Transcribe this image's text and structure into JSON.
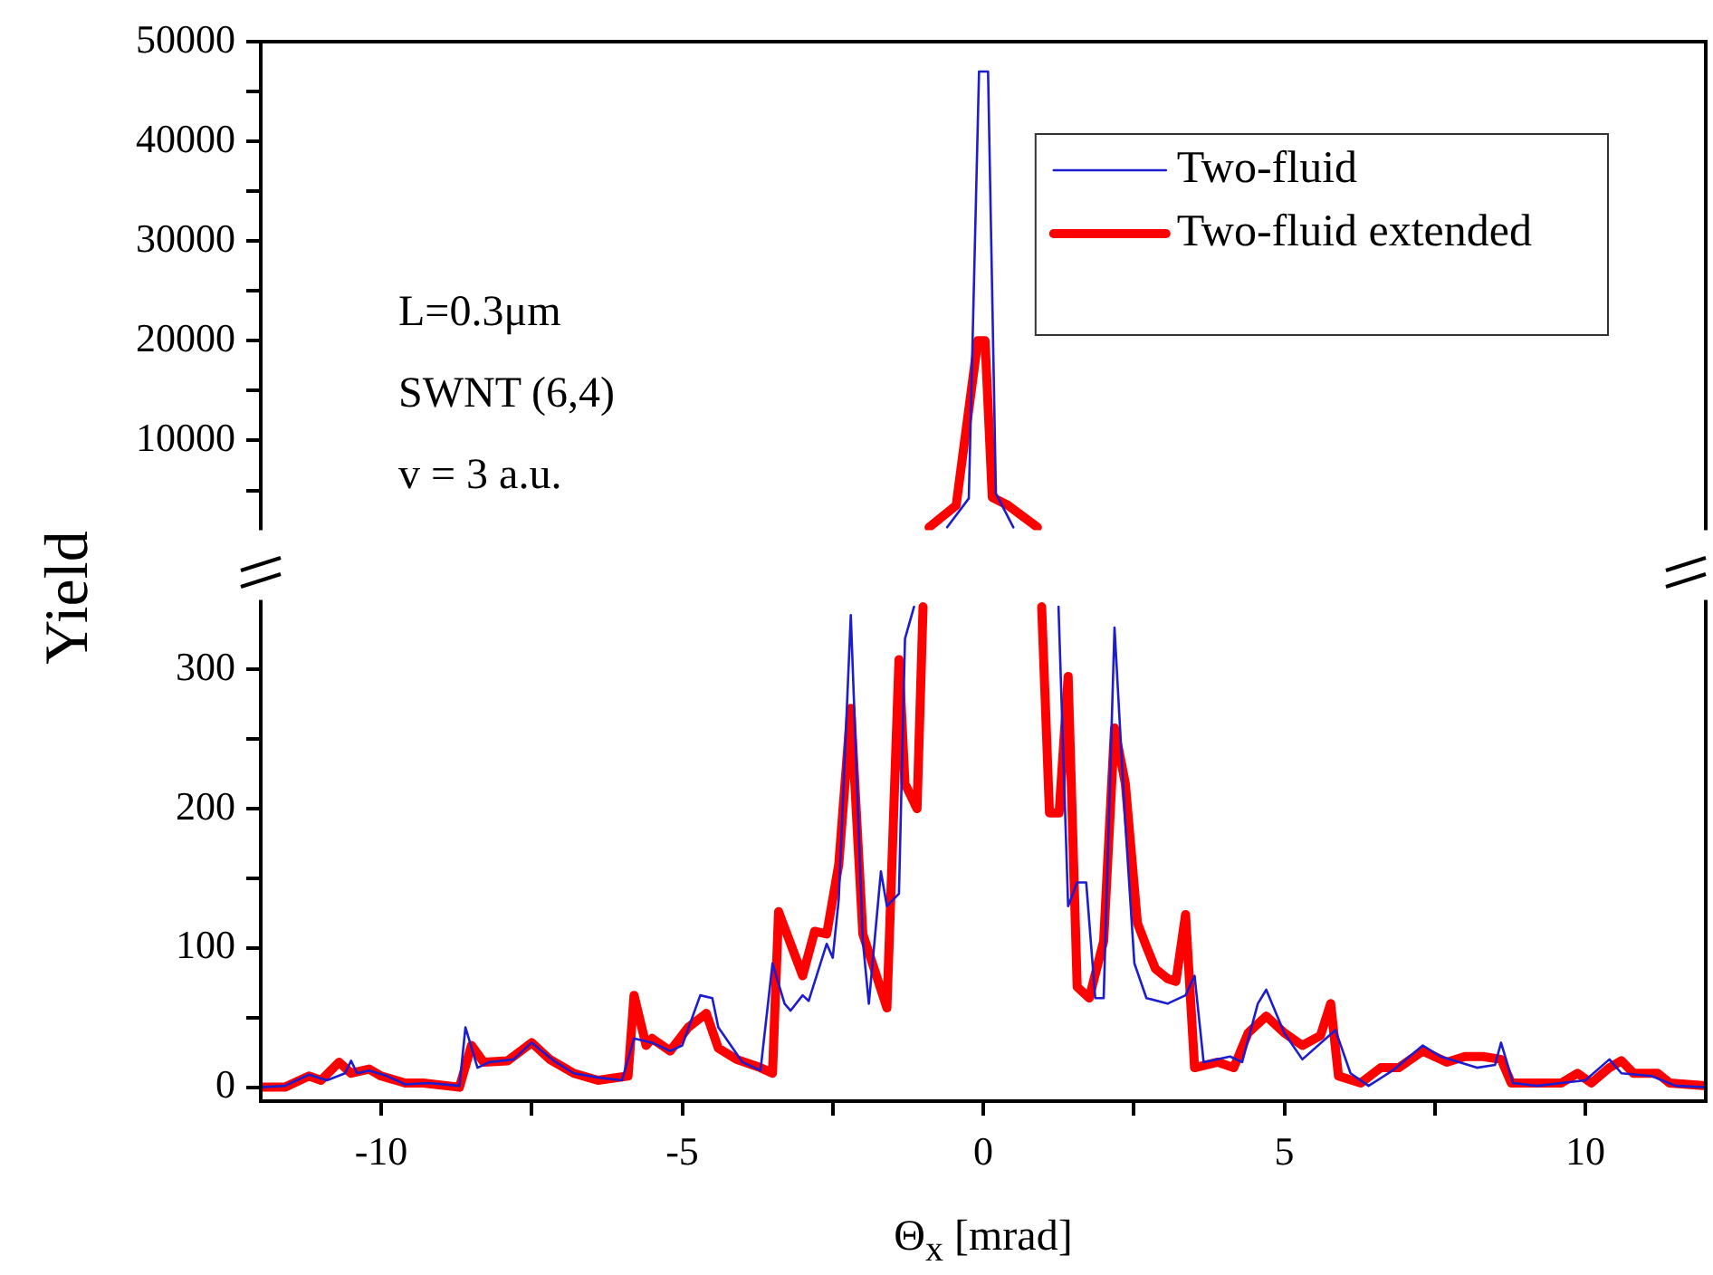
{
  "chart_data": [
    {
      "type": "line",
      "xlim": [
        -12,
        12
      ],
      "ylim": [
        1000,
        50000
      ],
      "yticks": [
        {
          "value": 5000,
          "label": null
        },
        10000,
        {
          "value": 15000,
          "label": null
        },
        20000,
        {
          "value": 25000,
          "label": null
        },
        30000,
        {
          "value": 35000,
          "label": null
        },
        40000,
        {
          "value": 45000,
          "label": null
        },
        50000
      ],
      "tick_labels": "y",
      "legend": "top right",
      "annotations": [
        "L=0.3μm",
        "SWNT (6,4)",
        "v = 3 a.u."
      ],
      "series": [
        {
          "name": "Two-fluid",
          "color": "#1c1cd0",
          "x": [
            -0.6,
            -0.24,
            -0.07,
            0.08,
            0.21,
            0.5
          ],
          "values": [
            1300,
            4200,
            47000,
            47000,
            4700,
            1300
          ]
        },
        {
          "name": "Two-fluid extended",
          "color": "#ff0000",
          "x": [
            -0.9,
            -0.45,
            -0.09,
            0.03,
            0.15,
            0.41,
            0.9
          ],
          "values": [
            1300,
            3500,
            20000,
            20000,
            4300,
            3500,
            1300
          ]
        }
      ]
    },
    {
      "type": "line",
      "xlim": [
        -12,
        12
      ],
      "xticks": [
        -10,
        {
          "value": -7.5,
          "label": null
        },
        -5,
        {
          "value": -2.5,
          "label": null
        },
        0,
        {
          "value": 2.5,
          "label": null
        },
        5,
        {
          "value": 7.5,
          "label": null
        },
        10
      ],
      "ylim": [
        -10,
        350
      ],
      "yticks": [
        0,
        {
          "value": 50,
          "label": null
        },
        100,
        {
          "value": 150,
          "label": null
        },
        200,
        {
          "value": 250,
          "label": null
        },
        300
      ],
      "xlabel": "Θ$_{x}$ [mrad]",
      "ylabel": "Yield",
      "series": [
        {
          "color": "#1c1cd0",
          "x": [
            -12,
            -11.6,
            -11.2,
            -10.9,
            -10.6,
            -10.5,
            -10.4,
            -10.2,
            -9.9,
            -9.6,
            -9.2,
            -8.7,
            -8.6,
            -8.4,
            -8.2,
            -7.8,
            -7.5,
            -7.1,
            -6.8,
            -6.4,
            -6.0,
            -5.8,
            -5.5,
            -5.2,
            -5.0,
            -4.7,
            -4.5,
            -4.4,
            -4.0,
            -3.7,
            -3.5,
            -3.3,
            -3.2,
            -3.0,
            -2.9,
            -2.6,
            -2.5,
            -2.4,
            -2.2,
            -2.0,
            -1.9,
            -1.7,
            -1.6,
            -1.4,
            -1.3,
            -1.15,
            0,
            1.25,
            1.41,
            1.56,
            1.71,
            1.86,
            2.0,
            2.18,
            2.36,
            2.51,
            2.71,
            3.06,
            3.36,
            3.51,
            3.66,
            4.1,
            4.3,
            4.56,
            4.7,
            5.0,
            5.3,
            5.85,
            6.1,
            6.4,
            6.8,
            7.3,
            7.6,
            8.2,
            8.5,
            8.6,
            8.8,
            9.2,
            9.6,
            10.0,
            10.4,
            10.6,
            11.1,
            11.5,
            12.0
          ],
          "values": [
            0,
            1,
            9,
            5,
            10,
            19,
            10,
            12,
            8,
            2,
            3,
            1,
            43,
            14,
            18,
            20,
            32,
            18,
            10,
            7,
            5,
            35,
            32,
            26,
            30,
            66,
            64,
            43,
            18,
            12,
            89,
            60,
            55,
            66,
            62,
            103,
            93,
            135,
            339,
            105,
            60,
            155,
            130,
            139,
            322,
            345,
            null,
            345,
            130,
            147,
            147,
            64,
            64,
            330,
            189,
            89,
            64,
            60,
            66,
            80,
            18,
            22,
            18,
            60,
            70,
            39,
            20,
            41,
            10,
            1,
            12,
            30,
            22,
            14,
            16,
            32,
            3,
            1,
            3,
            5,
            20,
            10,
            8,
            1,
            0
          ]
        },
        {
          "color": "#ff0000",
          "x": [
            -12,
            -11.6,
            -11.2,
            -11.0,
            -10.7,
            -10.5,
            -10.2,
            -10.0,
            -9.6,
            -9.3,
            -8.7,
            -8.5,
            -8.3,
            -7.9,
            -7.5,
            -7.2,
            -6.8,
            -6.4,
            -5.9,
            -5.8,
            -5.6,
            -5.5,
            -5.2,
            -4.9,
            -4.6,
            -4.4,
            -4.1,
            -3.7,
            -3.5,
            -3.4,
            -3.0,
            -2.8,
            -2.6,
            -2.4,
            -2.2,
            -2.0,
            -1.6,
            -1.4,
            -1.3,
            -1.1,
            -1.0,
            0,
            0.97,
            1.1,
            1.26,
            1.41,
            1.56,
            1.76,
            2.0,
            2.18,
            2.36,
            2.56,
            2.71,
            2.86,
            3.06,
            3.2,
            3.36,
            3.51,
            3.9,
            4.16,
            4.4,
            4.7,
            5.0,
            5.3,
            5.6,
            5.77,
            5.9,
            6.27,
            6.6,
            6.9,
            7.3,
            7.7,
            8.0,
            8.3,
            8.6,
            8.77,
            9.2,
            9.6,
            9.87,
            10.1,
            10.4,
            10.6,
            10.8,
            11.2,
            11.4,
            12.0
          ],
          "values": [
            0,
            0,
            8,
            5,
            18,
            10,
            13,
            8,
            3,
            3,
            0,
            30,
            18,
            19,
            32,
            20,
            10,
            5,
            8,
            66,
            30,
            35,
            26,
            43,
            53,
            28,
            20,
            14,
            10,
            126,
            80,
            112,
            110,
            160,
            272,
            110,
            57,
            307,
            218,
            200,
            345,
            null,
            345,
            197,
            197,
            295,
            72,
            64,
            105,
            258,
            218,
            118,
            101,
            85,
            78,
            76,
            124,
            14,
            18,
            14,
            39,
            51,
            39,
            30,
            37,
            60,
            8,
            3,
            14,
            14,
            26,
            18,
            22,
            22,
            20,
            3,
            3,
            3,
            10,
            3,
            14,
            19,
            10,
            10,
            3,
            1
          ]
        }
      ]
    }
  ]
}
